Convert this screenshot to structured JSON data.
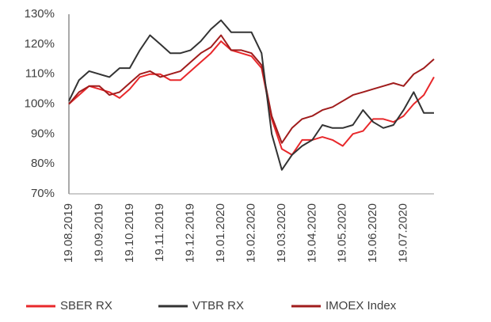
{
  "chart_data": {
    "type": "line",
    "categories": [
      "19.08.2019",
      null,
      null,
      "19.09.2019",
      null,
      null,
      "19.10.2019",
      null,
      null,
      "19.11.2019",
      null,
      null,
      "19.12.2019",
      null,
      null,
      "19.01.2020",
      null,
      null,
      "19.02.2020",
      null,
      null,
      "19.03.2020",
      null,
      null,
      "19.04.2020",
      null,
      null,
      "19.05.2020",
      null,
      null,
      "19.06.2020",
      null,
      null,
      "19.07.2020",
      null,
      null,
      null
    ],
    "series": [
      {
        "name": "SBER RX",
        "color": "#e8282b",
        "values": [
          100,
          103,
          106,
          105,
          104,
          102,
          105,
          109,
          110,
          110,
          108,
          108,
          111,
          114,
          117,
          121,
          118,
          117,
          116,
          112,
          95,
          85,
          83,
          88,
          88,
          89,
          88,
          86,
          90,
          91,
          95,
          95,
          94,
          96,
          100,
          103,
          109
        ]
      },
      {
        "name": "VTBR RX",
        "color": "#333333",
        "values": [
          101,
          108,
          111,
          110,
          109,
          112,
          112,
          118,
          123,
          120,
          117,
          117,
          118,
          121,
          125,
          128,
          124,
          124,
          124,
          117,
          90,
          78,
          83,
          86,
          88,
          93,
          92,
          92,
          93,
          98,
          94,
          92,
          93,
          98,
          104,
          97,
          97
        ]
      },
      {
        "name": "IMOEX Index",
        "color": "#a01c1c",
        "values": [
          100,
          104,
          106,
          106,
          103,
          104,
          107,
          110,
          111,
          109,
          110,
          111,
          114,
          117,
          119,
          123,
          118,
          118,
          117,
          113,
          96,
          87,
          92,
          95,
          96,
          98,
          99,
          101,
          103,
          104,
          105,
          106,
          107,
          106,
          110,
          112,
          115
        ]
      }
    ],
    "ylim": [
      70,
      130
    ],
    "yticks": [
      {
        "value": 70,
        "label": "70%"
      },
      {
        "value": 80,
        "label": "80%"
      },
      {
        "value": 90,
        "label": "90%"
      },
      {
        "value": 100,
        "label": "100%"
      },
      {
        "value": 110,
        "label": "110%"
      },
      {
        "value": 120,
        "label": "120%"
      },
      {
        "value": 130,
        "label": "130%"
      }
    ],
    "grid": false
  }
}
